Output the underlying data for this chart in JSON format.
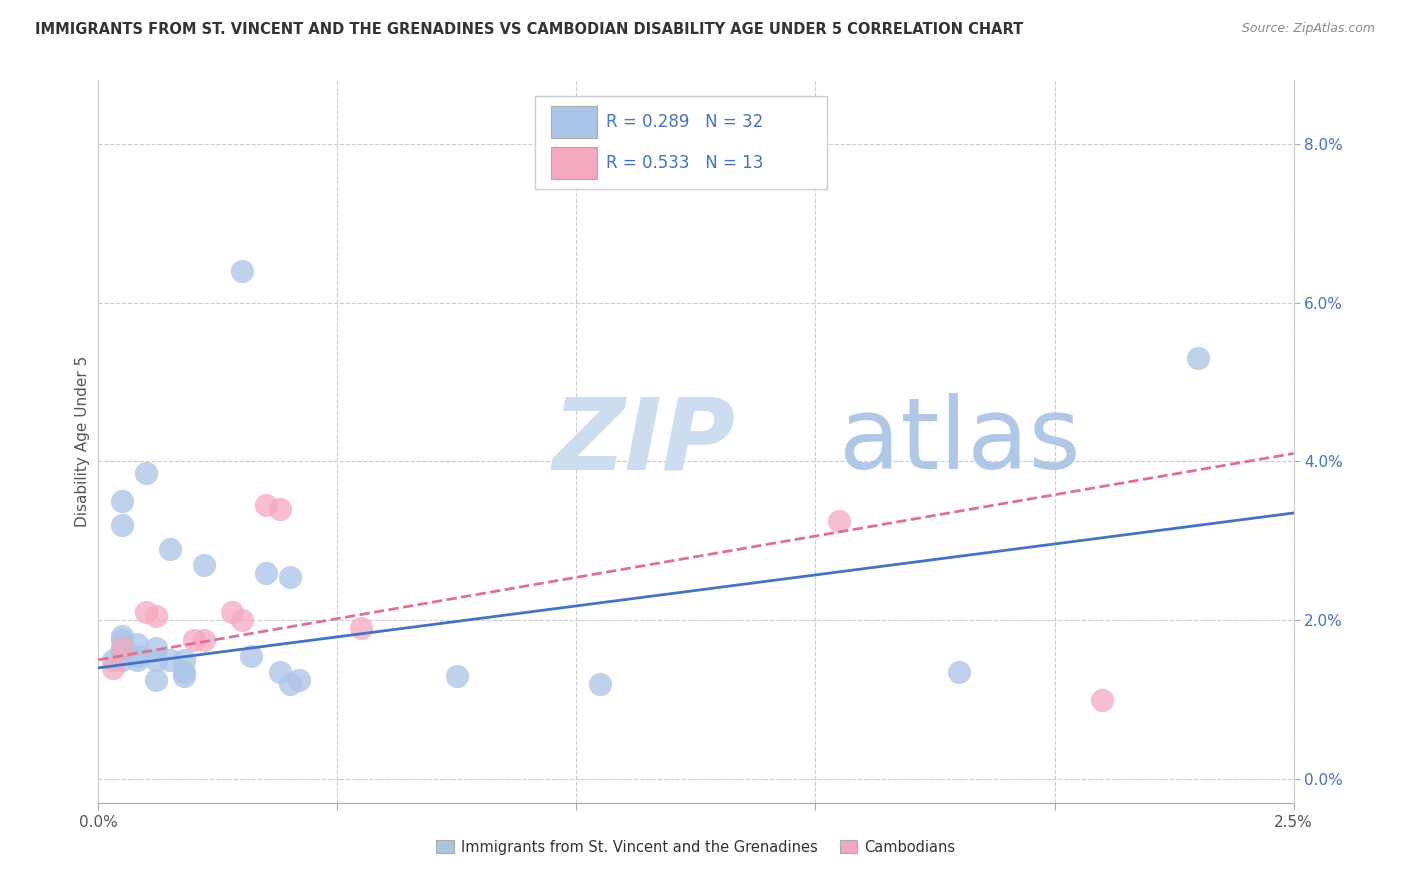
{
  "title": "IMMIGRANTS FROM ST. VINCENT AND THE GRENADINES VS CAMBODIAN DISABILITY AGE UNDER 5 CORRELATION CHART",
  "source": "Source: ZipAtlas.com",
  "ylabel": "Disability Age Under 5",
  "right_yticks": [
    0.0,
    2.0,
    4.0,
    6.0,
    8.0
  ],
  "right_yticklabels": [
    "0.0%",
    "2.0%",
    "4.0%",
    "6.0%",
    "8.0%"
  ],
  "xlim": [
    0.0,
    2.5
  ],
  "ylim": [
    -0.3,
    8.8
  ],
  "legend_blue_r": "0.289",
  "legend_blue_n": "32",
  "legend_pink_r": "0.533",
  "legend_pink_n": "13",
  "blue_color": "#aac4e8",
  "pink_color": "#f4a8be",
  "blue_line_color": "#4472c4",
  "pink_line_color": "#e07090",
  "watermark_zip": "ZIP",
  "watermark_atlas": "atlas",
  "blue_points_x": [
    0.05,
    0.05,
    0.05,
    0.05,
    0.05,
    0.03,
    0.08,
    0.08,
    0.1,
    0.12,
    0.12,
    0.12,
    0.15,
    0.15,
    0.18,
    0.18,
    0.18,
    0.22,
    0.3,
    0.32,
    0.35,
    0.38,
    0.4,
    0.4,
    0.42,
    0.75,
    1.05,
    1.8,
    2.3,
    0.08,
    0.05,
    0.05
  ],
  "blue_points_y": [
    3.5,
    3.2,
    1.75,
    1.6,
    1.5,
    1.5,
    1.7,
    1.55,
    3.85,
    1.65,
    1.5,
    1.25,
    2.9,
    1.5,
    1.5,
    1.35,
    1.3,
    2.7,
    6.4,
    1.55,
    2.6,
    1.35,
    2.55,
    1.2,
    1.25,
    1.3,
    1.2,
    1.35,
    5.3,
    1.5,
    1.8,
    1.65
  ],
  "pink_points_x": [
    0.03,
    0.05,
    0.1,
    0.12,
    0.2,
    0.22,
    0.28,
    0.3,
    0.35,
    0.38,
    0.55,
    1.55,
    2.1
  ],
  "pink_points_y": [
    1.4,
    1.65,
    2.1,
    2.05,
    1.75,
    1.75,
    2.1,
    2.0,
    3.45,
    3.4,
    1.9,
    3.25,
    1.0
  ],
  "blue_trend_x": [
    0.0,
    2.5
  ],
  "blue_trend_y": [
    1.4,
    3.35
  ],
  "pink_trend_x": [
    0.0,
    2.5
  ],
  "pink_trend_y": [
    1.5,
    4.1
  ],
  "xtick_positions": [
    0.0,
    0.5,
    1.0,
    1.5,
    2.0,
    2.5
  ],
  "legend_text_color": "#4472c4",
  "bottom_legend_blue_label": "Immigrants from St. Vincent and the Grenadines",
  "bottom_legend_pink_label": "Cambodians"
}
